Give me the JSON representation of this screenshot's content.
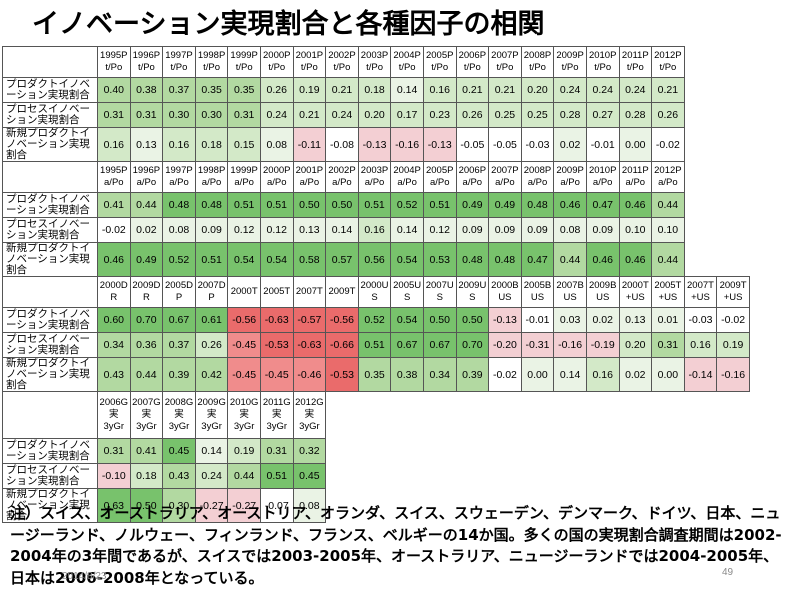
{
  "title": "イノベーション実現割合と各種因子の相関",
  "row_labels": [
    "プロダクトイノベーション実現割合",
    "プロセスイノベーション実現割合",
    "新規プロダクトイノベーション実現割合"
  ],
  "colors": {
    "green": [
      "#ffffff",
      "#eaf3e5",
      "#d3e9c8",
      "#b2d9a1",
      "#78c26c"
    ],
    "red": [
      "#f3cfd3",
      "#f08c8c",
      "#ea6b6b"
    ]
  },
  "blocks": [
    {
      "headers": [
        "1995P\nt/Po",
        "1996P\nt/Po",
        "1997P\nt/Po",
        "1998P\nt/Po",
        "1999P\nt/Po",
        "2000P\nt/Po",
        "2001P\nt/Po",
        "2002P\nt/Po",
        "2003P\nt/Po",
        "2004P\nt/Po",
        "2005P\nt/Po",
        "2006P\nt/Po",
        "2007P\nt/Po",
        "2008P\nt/Po",
        "2009P\nt/Po",
        "2010P\nt/Po",
        "2011P\nt/Po",
        "2012P\nt/Po"
      ],
      "rows": [
        [
          "0.40",
          "0.38",
          "0.37",
          "0.35",
          "0.35",
          "0.26",
          "0.19",
          "0.21",
          "0.18",
          "0.14",
          "0.16",
          "0.21",
          "0.21",
          "0.20",
          "0.24",
          "0.24",
          "0.24",
          "0.21"
        ],
        [
          "0.31",
          "0.31",
          "0.30",
          "0.30",
          "0.31",
          "0.24",
          "0.21",
          "0.24",
          "0.20",
          "0.17",
          "0.23",
          "0.26",
          "0.25",
          "0.25",
          "0.28",
          "0.27",
          "0.28",
          "0.26"
        ],
        [
          "0.16",
          "0.13",
          "0.16",
          "0.18",
          "0.15",
          "0.08",
          "-0.11",
          "-0.08",
          "-0.13",
          "-0.16",
          "-0.13",
          "-0.05",
          "-0.05",
          "-0.03",
          "0.02",
          "-0.01",
          "0.00",
          "-0.02"
        ]
      ]
    },
    {
      "headers": [
        "1995P\na/Po",
        "1996P\na/Po",
        "1997P\na/Po",
        "1998P\na/Po",
        "1999P\na/Po",
        "2000P\na/Po",
        "2001P\na/Po",
        "2002P\na/Po",
        "2003P\na/Po",
        "2004P\na/Po",
        "2005P\na/Po",
        "2006P\na/Po",
        "2007P\na/Po",
        "2008P\na/Po",
        "2009P\na/Po",
        "2010P\na/Po",
        "2011P\na/Po",
        "2012P\na/Po"
      ],
      "rows": [
        [
          "0.41",
          "0.44",
          "0.48",
          "0.48",
          "0.51",
          "0.51",
          "0.50",
          "0.50",
          "0.51",
          "0.52",
          "0.51",
          "0.49",
          "0.49",
          "0.48",
          "0.46",
          "0.47",
          "0.46",
          "0.44"
        ],
        [
          "-0.02",
          "0.02",
          "0.08",
          "0.09",
          "0.12",
          "0.12",
          "0.13",
          "0.14",
          "0.16",
          "0.14",
          "0.12",
          "0.09",
          "0.09",
          "0.09",
          "0.08",
          "0.09",
          "0.10",
          "0.10"
        ],
        [
          "0.46",
          "0.49",
          "0.52",
          "0.51",
          "0.54",
          "0.54",
          "0.58",
          "0.57",
          "0.56",
          "0.54",
          "0.53",
          "0.48",
          "0.48",
          "0.47",
          "0.44",
          "0.46",
          "0.46",
          "0.44"
        ]
      ]
    },
    {
      "headers": [
        "2000D\nR",
        "2009D\nR",
        "2005D\nP",
        "2007D\nP",
        "2000T",
        "2005T",
        "2007T",
        "2009T",
        "2000U\nS",
        "2005U\nS",
        "2007U\nS",
        "2009U\nS",
        "2000B\nUS",
        "2005B\nUS",
        "2007B\nUS",
        "2009B\nUS",
        "2000T\n+US",
        "2005T\n+US",
        "2007T\n+US",
        "2009T\n+US"
      ],
      "rows": [
        [
          "0.60",
          "0.70",
          "0.67",
          "0.61",
          "-0.56",
          "-0.63",
          "-0.57",
          "-0.56",
          "0.52",
          "0.54",
          "0.50",
          "0.50",
          "-0.13",
          "-0.01",
          "0.03",
          "0.02",
          "0.13",
          "0.01",
          "-0.03",
          "-0.02"
        ],
        [
          "0.34",
          "0.36",
          "0.37",
          "0.26",
          "-0.45",
          "-0.53",
          "-0.63",
          "-0.66",
          "0.51",
          "0.67",
          "0.67",
          "0.70",
          "-0.20",
          "-0.31",
          "-0.16",
          "-0.19",
          "0.20",
          "0.31",
          "0.16",
          "0.19"
        ],
        [
          "0.43",
          "0.44",
          "0.39",
          "0.42",
          "-0.45",
          "-0.45",
          "-0.46",
          "-0.53",
          "0.35",
          "0.38",
          "0.34",
          "0.39",
          "-0.02",
          "0.00",
          "0.14",
          "0.16",
          "0.02",
          "0.00",
          "-0.14",
          "-0.16"
        ]
      ]
    },
    {
      "headers": [
        "2006G\n実\n3yGr",
        "2007G\n実\n3yGr",
        "2008G\n実\n3yGr",
        "2009G\n実\n3yGr",
        "2010G\n実\n3yGr",
        "2011G\n実\n3yGr",
        "2012G\n実\n3yGr"
      ],
      "rows": [
        [
          "0.31",
          "0.41",
          "0.45",
          "0.14",
          "0.19",
          "0.31",
          "0.32"
        ],
        [
          "-0.10",
          "0.18",
          "0.43",
          "0.24",
          "0.44",
          "0.51",
          "0.45"
        ],
        [
          "0.63",
          "0.50",
          "0.30",
          "-0.27",
          "-0.27",
          "-0.07",
          "0.08"
        ]
      ]
    }
  ],
  "note": "注）スイス、オーストラリア、オーストリア、オランダ、スイス、スウェーデン、デンマーク、ドイツ、日本、ニュージーランド、ノルウェー、フィンランド、フランス、ベルギーの14か国。多くの国の実現割合調査期間は2002-2004年の3年間であるが、スイスでは2003-2005年、オーストラリア、ニュージーランドでは2004-2005年、日本は2006-2008年となっている。",
  "footer": {
    "date": "2014/8/23",
    "page": "49"
  }
}
